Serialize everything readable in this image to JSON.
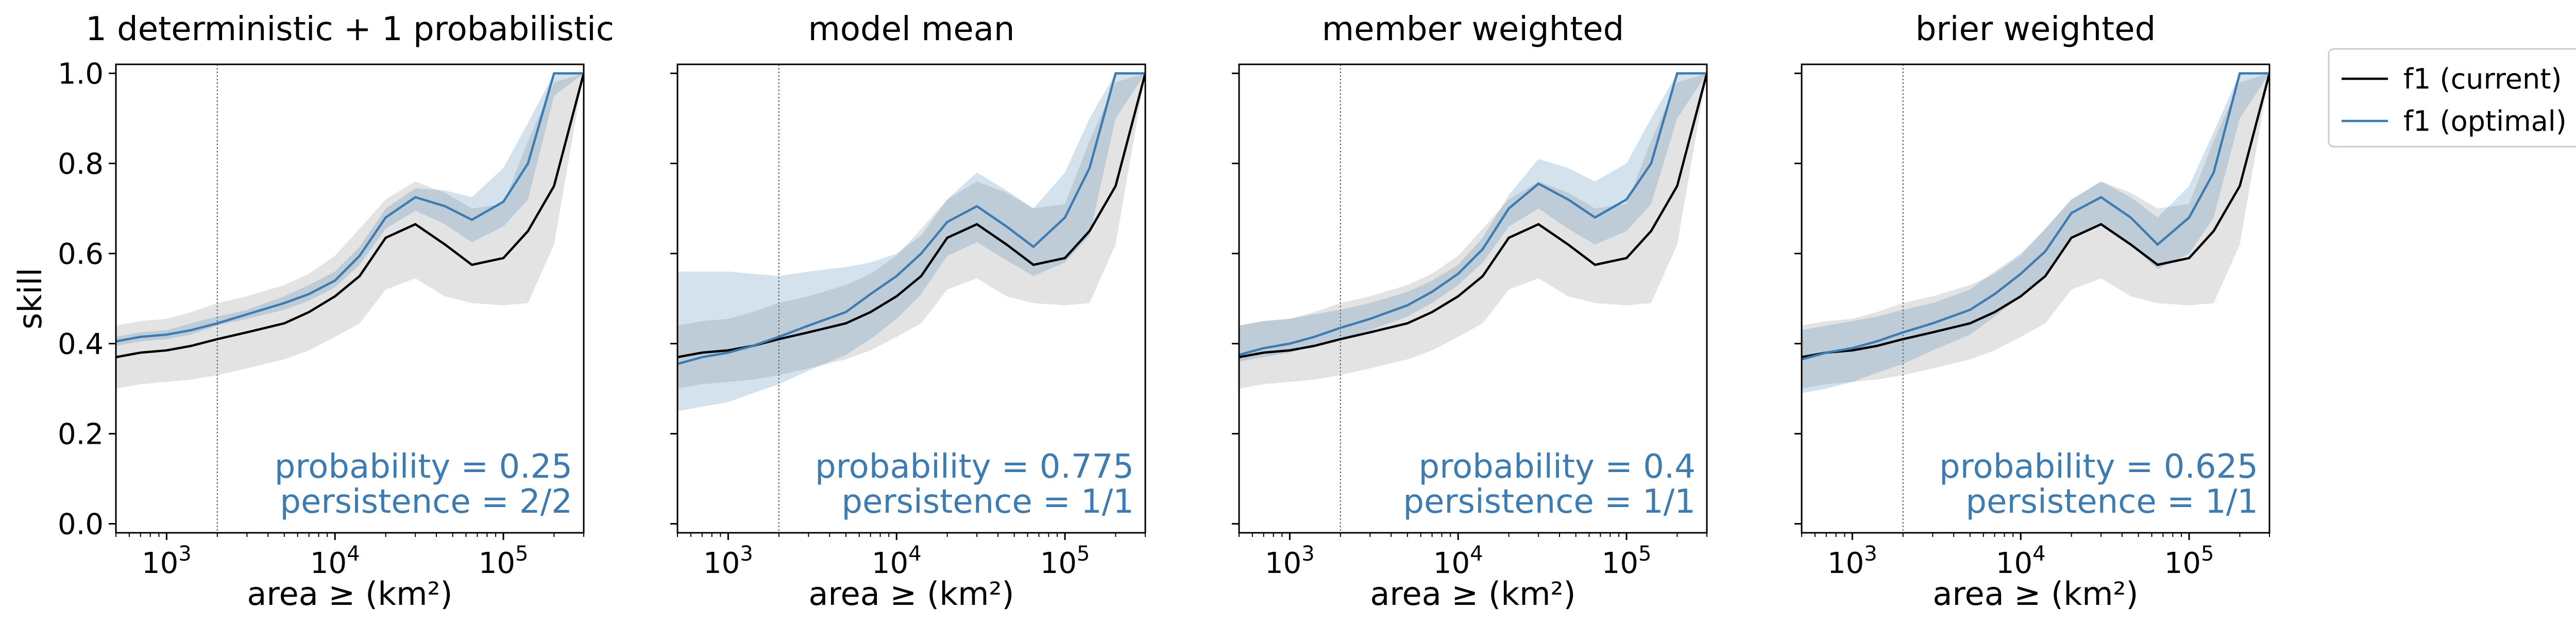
{
  "chart_data": {
    "type": "line",
    "shared": {
      "xlabel": "area ≥ (km²)",
      "ylabel": "skill",
      "x_scale": "log",
      "xlim": [
        500,
        300000
      ],
      "ylim": [
        -0.02,
        1.02
      ],
      "xtick_values": [
        1000,
        10000,
        100000
      ],
      "xtick_labels": [
        [
          "10",
          "3"
        ],
        [
          "10",
          "4"
        ],
        [
          "10",
          "5"
        ]
      ],
      "ytick_values": [
        0.0,
        0.2,
        0.4,
        0.6,
        0.8,
        1.0
      ],
      "ytick_labels": [
        "0.0",
        "0.2",
        "0.4",
        "0.6",
        "0.8",
        "1.0"
      ],
      "reference_vline_x": 2000,
      "x": [
        500,
        700,
        1000,
        1400,
        2000,
        3000,
        5000,
        7000,
        10000,
        14000,
        20000,
        30000,
        45000,
        65000,
        100000,
        140000,
        200000,
        300000
      ],
      "current": {
        "name": "f1 (current)",
        "color": "#000000",
        "band_color": "#7f7f7f",
        "values": [
          0.37,
          0.38,
          0.385,
          0.395,
          0.41,
          0.425,
          0.445,
          0.47,
          0.505,
          0.55,
          0.635,
          0.665,
          0.62,
          0.575,
          0.59,
          0.65,
          0.75,
          1.0
        ],
        "lower": [
          0.3,
          0.31,
          0.315,
          0.32,
          0.33,
          0.345,
          0.365,
          0.385,
          0.415,
          0.445,
          0.52,
          0.545,
          0.505,
          0.49,
          0.485,
          0.49,
          0.62,
          1.0
        ],
        "upper": [
          0.44,
          0.45,
          0.455,
          0.47,
          0.49,
          0.505,
          0.53,
          0.555,
          0.595,
          0.655,
          0.72,
          0.76,
          0.735,
          0.7,
          0.71,
          0.85,
          0.98,
          1.0
        ]
      }
    },
    "panels": [
      {
        "title": "1 deterministic + 1 probabilistic",
        "annotation": [
          "probability = 0.25",
          "persistence = 2/2"
        ],
        "show_ylabel": true,
        "optimal": {
          "name": "f1 (optimal)",
          "color": "#3d7bb0",
          "values": [
            0.405,
            0.415,
            0.42,
            0.43,
            0.445,
            0.465,
            0.49,
            0.51,
            0.54,
            0.595,
            0.68,
            0.725,
            0.705,
            0.675,
            0.715,
            0.8,
            1.0,
            1.0
          ],
          "lower": [
            0.395,
            0.405,
            0.41,
            0.42,
            0.44,
            0.455,
            0.475,
            0.495,
            0.525,
            0.575,
            0.655,
            0.695,
            0.665,
            0.625,
            0.66,
            0.72,
            0.95,
            1.0
          ],
          "upper": [
            0.415,
            0.425,
            0.43,
            0.445,
            0.46,
            0.475,
            0.505,
            0.53,
            0.56,
            0.615,
            0.7,
            0.745,
            0.74,
            0.725,
            0.79,
            0.89,
            1.0,
            1.0
          ]
        }
      },
      {
        "title": "model mean",
        "annotation": [
          "probability = 0.775",
          "persistence = 1/1"
        ],
        "show_ylabel": false,
        "optimal": {
          "name": "f1 (optimal)",
          "color": "#3d7bb0",
          "values": [
            0.355,
            0.37,
            0.38,
            0.395,
            0.415,
            0.44,
            0.47,
            0.51,
            0.55,
            0.6,
            0.67,
            0.705,
            0.66,
            0.615,
            0.68,
            0.79,
            1.0,
            1.0
          ],
          "lower": [
            0.25,
            0.26,
            0.27,
            0.29,
            0.31,
            0.34,
            0.375,
            0.41,
            0.455,
            0.51,
            0.595,
            0.625,
            0.585,
            0.55,
            0.58,
            0.64,
            0.9,
            1.0
          ],
          "upper": [
            0.56,
            0.56,
            0.56,
            0.555,
            0.55,
            0.56,
            0.57,
            0.58,
            0.6,
            0.64,
            0.72,
            0.78,
            0.74,
            0.7,
            0.78,
            0.9,
            1.0,
            1.0
          ]
        }
      },
      {
        "title": "member weighted",
        "annotation": [
          "probability = 0.4",
          "persistence = 1/1"
        ],
        "show_ylabel": false,
        "optimal": {
          "name": "f1 (optimal)",
          "color": "#3d7bb0",
          "values": [
            0.375,
            0.39,
            0.4,
            0.415,
            0.435,
            0.455,
            0.485,
            0.515,
            0.555,
            0.61,
            0.7,
            0.755,
            0.72,
            0.68,
            0.72,
            0.8,
            1.0,
            1.0
          ],
          "lower": [
            0.36,
            0.37,
            0.38,
            0.395,
            0.41,
            0.43,
            0.46,
            0.49,
            0.53,
            0.58,
            0.66,
            0.7,
            0.655,
            0.62,
            0.65,
            0.71,
            0.9,
            1.0
          ],
          "upper": [
            0.44,
            0.45,
            0.455,
            0.465,
            0.475,
            0.49,
            0.515,
            0.54,
            0.575,
            0.635,
            0.73,
            0.81,
            0.79,
            0.76,
            0.8,
            0.9,
            1.0,
            1.0
          ]
        }
      },
      {
        "title": "brier weighted",
        "annotation": [
          "probability = 0.625",
          "persistence = 1/1"
        ],
        "show_ylabel": false,
        "optimal": {
          "name": "f1 (optimal)",
          "color": "#3d7bb0",
          "values": [
            0.365,
            0.38,
            0.39,
            0.405,
            0.425,
            0.445,
            0.475,
            0.51,
            0.555,
            0.605,
            0.69,
            0.725,
            0.68,
            0.62,
            0.68,
            0.78,
            1.0,
            1.0
          ],
          "lower": [
            0.29,
            0.3,
            0.315,
            0.335,
            0.355,
            0.385,
            0.42,
            0.46,
            0.505,
            0.555,
            0.635,
            0.665,
            0.62,
            0.565,
            0.6,
            0.68,
            0.9,
            1.0
          ],
          "upper": [
            0.43,
            0.44,
            0.45,
            0.46,
            0.475,
            0.49,
            0.52,
            0.56,
            0.6,
            0.655,
            0.72,
            0.76,
            0.725,
            0.68,
            0.75,
            0.87,
            1.0,
            1.0
          ]
        }
      }
    ],
    "legend": {
      "placement": "outside-right-top",
      "entries": [
        {
          "label": "f1 (current)",
          "color": "#000000"
        },
        {
          "label": "f1 (optimal)",
          "color": "#3d7bb0"
        }
      ]
    }
  }
}
